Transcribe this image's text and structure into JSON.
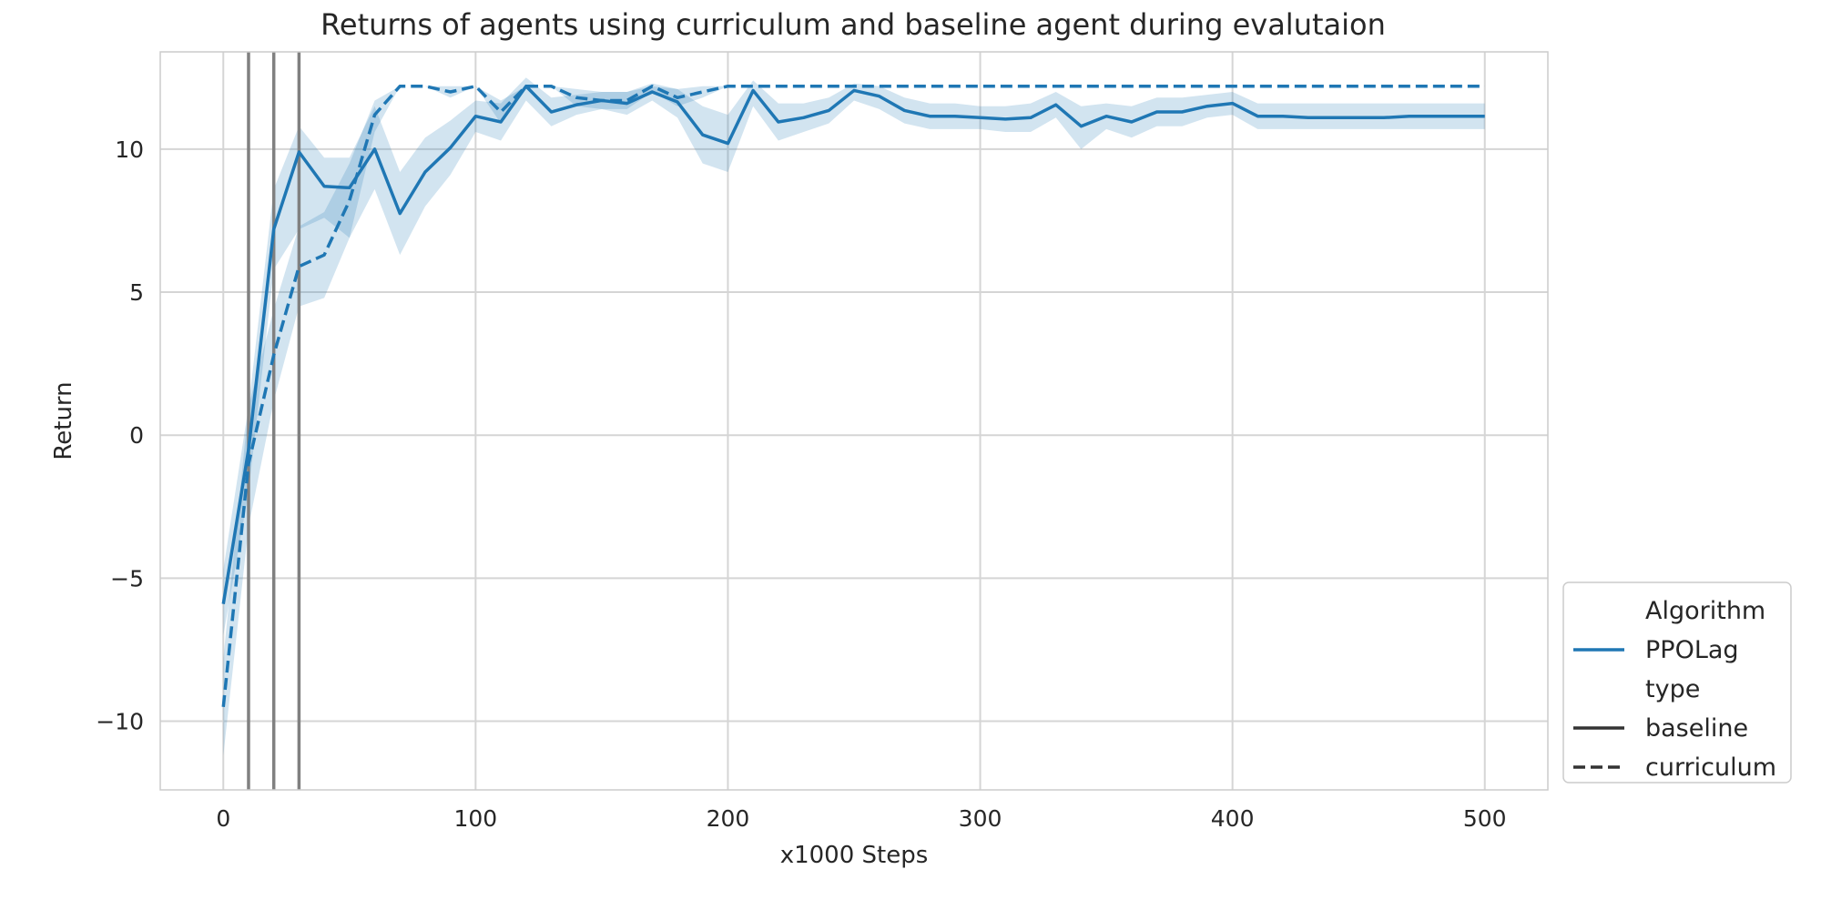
{
  "chart_data": {
    "type": "line",
    "title": "Returns of agents using curriculum and baseline agent during evalutaion",
    "xlabel": "x1000 Steps",
    "ylabel": "Return",
    "xlim": [
      -25,
      525
    ],
    "ylim": [
      -12.4,
      13.4
    ],
    "xticks": [
      0,
      100,
      200,
      300,
      400,
      500
    ],
    "xtick_labels": [
      "0",
      "100",
      "200",
      "300",
      "400",
      "500"
    ],
    "yticks": [
      -10,
      -5,
      0,
      5,
      10
    ],
    "ytick_labels": [
      "−10",
      "−5",
      "0",
      "5",
      "10"
    ],
    "grid": true,
    "legend_position": "lower right, outside plot",
    "vertical_lines": [
      10,
      20,
      30
    ],
    "colors": {
      "series": "#1f77b4",
      "band": "#1f77b4",
      "vline": "#808080",
      "grid": "#d5d5d5",
      "legend_dark": "#333333"
    },
    "legend": [
      {
        "kind": "header",
        "label": "Algorithm"
      },
      {
        "kind": "entry",
        "label": "PPOLag",
        "style": "solid-color"
      },
      {
        "kind": "header",
        "label": "type"
      },
      {
        "kind": "entry",
        "label": "baseline",
        "style": "solid-dark"
      },
      {
        "kind": "entry",
        "label": "curriculum",
        "style": "dashed-dark"
      }
    ],
    "series": [
      {
        "algorithm": "PPOLag",
        "type": "baseline",
        "style": "solid",
        "x": [
          0,
          10,
          20,
          30,
          40,
          50,
          60,
          70,
          80,
          90,
          100,
          110,
          120,
          130,
          140,
          150,
          160,
          170,
          180,
          190,
          200,
          210,
          220,
          230,
          240,
          250,
          260,
          270,
          280,
          290,
          300,
          310,
          320,
          330,
          340,
          350,
          360,
          370,
          380,
          390,
          400,
          410,
          420,
          430,
          440,
          450,
          460,
          470,
          480,
          490,
          500
        ],
        "y": [
          -5.9,
          -0.5,
          7.2,
          9.9,
          8.7,
          8.65,
          10.0,
          7.75,
          9.2,
          10.05,
          11.15,
          10.95,
          12.2,
          11.3,
          11.55,
          11.7,
          11.6,
          12.0,
          11.65,
          10.5,
          10.2,
          12.05,
          10.95,
          11.1,
          11.35,
          12.05,
          11.85,
          11.35,
          11.15,
          11.15,
          11.1,
          11.05,
          11.1,
          11.55,
          10.8,
          11.15,
          10.95,
          11.3,
          11.3,
          11.5,
          11.6,
          11.15,
          11.15,
          11.1,
          11.1,
          11.1,
          11.1,
          11.15,
          11.15,
          11.15,
          11.15
        ],
        "lower": [
          -7.0,
          -2.0,
          5.8,
          7.2,
          7.6,
          6.9,
          8.6,
          6.3,
          8.0,
          9.1,
          10.6,
          10.3,
          11.7,
          10.8,
          11.2,
          11.4,
          11.2,
          11.7,
          11.1,
          9.5,
          9.2,
          11.5,
          10.3,
          10.6,
          10.9,
          11.7,
          11.4,
          10.9,
          10.7,
          10.7,
          10.7,
          10.6,
          10.6,
          11.1,
          10.0,
          10.7,
          10.4,
          10.8,
          10.8,
          11.1,
          11.2,
          10.7,
          10.7,
          10.7,
          10.7,
          10.7,
          10.7,
          10.7,
          10.7,
          10.7,
          10.7
        ],
        "upper": [
          -4.7,
          1.0,
          8.6,
          10.8,
          9.7,
          9.7,
          11.5,
          9.2,
          10.4,
          11.0,
          11.7,
          11.6,
          12.5,
          11.8,
          11.9,
          12.0,
          12.0,
          12.3,
          12.1,
          11.5,
          11.2,
          12.4,
          11.6,
          11.6,
          11.8,
          12.3,
          12.2,
          11.8,
          11.6,
          11.6,
          11.5,
          11.5,
          11.6,
          12.0,
          11.5,
          11.6,
          11.5,
          11.8,
          11.8,
          11.9,
          12.0,
          11.6,
          11.6,
          11.6,
          11.6,
          11.6,
          11.6,
          11.6,
          11.6,
          11.6,
          11.6
        ]
      },
      {
        "algorithm": "PPOLag",
        "type": "curriculum",
        "style": "dashed",
        "x": [
          0,
          10,
          20,
          30,
          40,
          50,
          60,
          70,
          80,
          90,
          100,
          110,
          120,
          130,
          140,
          150,
          160,
          170,
          180,
          190,
          200,
          210,
          220,
          230,
          240,
          250,
          260,
          270,
          280,
          290,
          300,
          310,
          320,
          330,
          340,
          350,
          360,
          370,
          380,
          390,
          400,
          410,
          420,
          430,
          440,
          450,
          460,
          470,
          480,
          490,
          500
        ],
        "y": [
          -9.5,
          -1.0,
          2.8,
          5.9,
          6.3,
          8.2,
          11.2,
          12.2,
          12.2,
          12.0,
          12.2,
          11.3,
          12.2,
          12.2,
          11.8,
          11.7,
          11.7,
          12.2,
          11.8,
          12.0,
          12.2,
          12.2,
          12.2,
          12.2,
          12.2,
          12.2,
          12.2,
          12.2,
          12.2,
          12.2,
          12.2,
          12.2,
          12.2,
          12.2,
          12.2,
          12.2,
          12.2,
          12.2,
          12.2,
          12.2,
          12.2,
          12.2,
          12.2,
          12.2,
          12.2,
          12.2,
          12.2,
          12.2,
          12.2,
          12.2,
          12.2
        ],
        "lower": [
          -11.2,
          -3.2,
          1.2,
          4.5,
          4.8,
          6.9,
          10.6,
          12.2,
          12.2,
          11.8,
          12.2,
          10.9,
          12.2,
          12.2,
          11.5,
          11.4,
          11.4,
          12.0,
          11.5,
          11.8,
          12.2,
          12.2,
          12.2,
          12.2,
          12.2,
          12.2,
          12.2,
          12.2,
          12.2,
          12.2,
          12.2,
          12.2,
          12.2,
          12.2,
          12.2,
          12.2,
          12.2,
          12.2,
          12.2,
          12.2,
          12.2,
          12.2,
          12.2,
          12.2,
          12.2,
          12.2,
          12.2,
          12.2,
          12.2,
          12.2,
          12.2
        ],
        "upper": [
          -7.8,
          1.0,
          4.4,
          7.3,
          7.8,
          9.5,
          11.7,
          12.2,
          12.2,
          12.2,
          12.2,
          11.7,
          12.2,
          12.2,
          12.1,
          12.0,
          12.0,
          12.2,
          12.1,
          12.2,
          12.2,
          12.2,
          12.2,
          12.2,
          12.2,
          12.2,
          12.2,
          12.2,
          12.2,
          12.2,
          12.2,
          12.2,
          12.2,
          12.2,
          12.2,
          12.2,
          12.2,
          12.2,
          12.2,
          12.2,
          12.2,
          12.2,
          12.2,
          12.2,
          12.2,
          12.2,
          12.2,
          12.2,
          12.2,
          12.2,
          12.2
        ]
      }
    ]
  }
}
